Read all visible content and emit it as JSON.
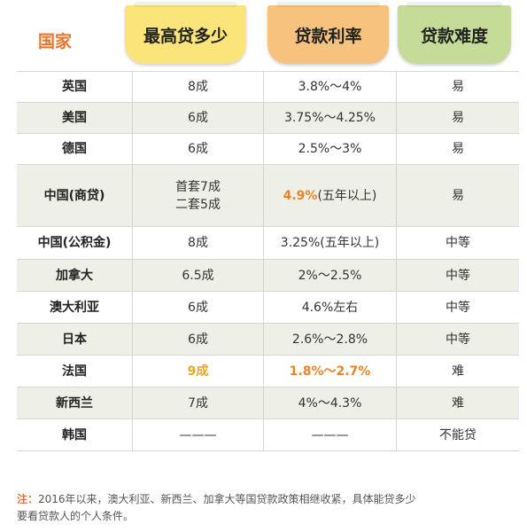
{
  "header": {
    "country": "国家",
    "max_loan": "最高贷多少",
    "rate": "贷款利率",
    "difficulty": "贷款难度"
  },
  "rows": [
    {
      "country": "英国",
      "max": "8成",
      "rate": "3.8%～4%",
      "difficulty": "易"
    },
    {
      "country": "美国",
      "max": "6成",
      "rate": "3.75%～4.25%",
      "difficulty": "易"
    },
    {
      "country": "德国",
      "max": "6成",
      "rate": "2.5%～3%",
      "difficulty": "易"
    },
    {
      "country": "中国(商贷)",
      "max_line1": "首套7成",
      "max_line2": "二套5成",
      "rate_highlight": "4.9%",
      "rate_suffix": "(五年以上)",
      "difficulty": "易"
    },
    {
      "country": "中国(公积金)",
      "max": "8成",
      "rate": "3.25%(五年以上)",
      "difficulty": "中等"
    },
    {
      "country": "加拿大",
      "max": "6.5成",
      "rate": "2%～2.5%",
      "difficulty": "中等"
    },
    {
      "country": "澳大利亚",
      "max": "6成",
      "rate": "4.6%左右",
      "difficulty": "中等"
    },
    {
      "country": "日本",
      "max": "6成",
      "rate": "2.6%～2.8%",
      "difficulty": "中等"
    },
    {
      "country": "法国",
      "max": "9成",
      "rate": "1.8%～2.7%",
      "difficulty": "难"
    },
    {
      "country": "新西兰",
      "max": "7成",
      "rate": "4%～4.3%",
      "difficulty": "难"
    },
    {
      "country": "韩国",
      "max": "———",
      "rate": "———",
      "difficulty": "不能贷"
    }
  ],
  "note": {
    "label": "注：",
    "line1": "2016年以来，澳大利亚、新西兰、加拿大等国贷款政策相继收紧，具体能贷多少",
    "line2": "要看贷款人的个人条件。"
  },
  "colors": {
    "accent_orange": "#e8742a",
    "tag_yellow": "#fbe57a",
    "tag_orange": "#f6c27e",
    "tag_green": "#c4dc98",
    "row_shade": "#eeefe6"
  }
}
